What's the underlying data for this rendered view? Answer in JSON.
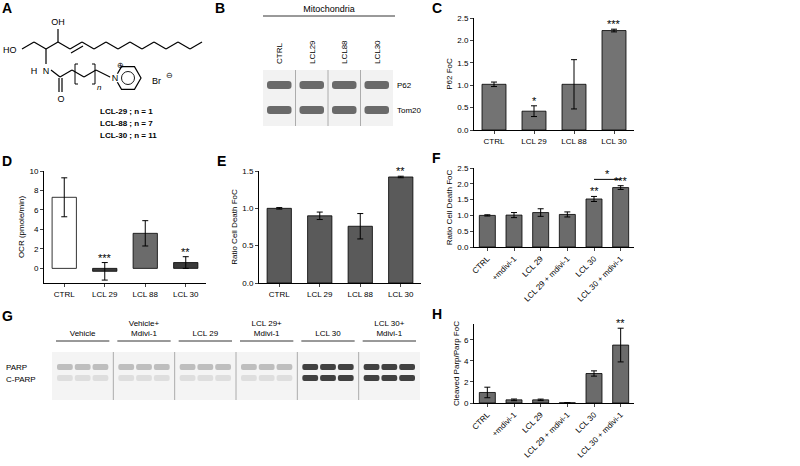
{
  "panels": {
    "A": {
      "label": "A",
      "structure": {
        "hydroxyl_1": "HO",
        "hydroxyl_2": "OH",
        "amide_h": "H",
        "amide_n": "N",
        "carbonyl_o": "O",
        "pyridinium_n": "N",
        "charge_plus": "⊕",
        "counterion": "Br",
        "charge_minus": "⊖",
        "repeat": "n"
      },
      "compounds": [
        "LCL-29 ; n = 1",
        "LCL-88 ; n = 7",
        "LCL-30 ; n = 11"
      ]
    },
    "B": {
      "label": "B",
      "title": "Mitochondria",
      "lanes": [
        "CTRL",
        "LCL29",
        "LCL88",
        "LCL30"
      ],
      "bands": [
        "P62",
        "Tom20"
      ]
    },
    "G": {
      "label": "G",
      "groups": [
        [
          "Vehicle"
        ],
        [
          "Vehicle+",
          "Mdivi-1"
        ],
        [
          "LCL 29"
        ],
        [
          "LCL 29+",
          "Mdivi-1"
        ],
        [
          "LCL 30"
        ],
        [
          "LCL 30+",
          "Mdivi-1"
        ]
      ],
      "bands": [
        "PARP",
        "C-PARP"
      ]
    }
  },
  "chart_data": [
    {
      "label": "C",
      "type": "bar",
      "y_label": "P62 FoC",
      "categories": [
        "CTRL",
        "LCL 29",
        "LCL 88",
        "LCL 30"
      ],
      "values": [
        1.02,
        0.42,
        1.02,
        2.22
      ],
      "errors": [
        0.05,
        0.12,
        0.55,
        0.03
      ],
      "color": "#737373",
      "ylim": [
        0,
        2.5
      ],
      "yticks": [
        {
          "value": 0,
          "label": "0.0"
        },
        0.5,
        {
          "value": 1,
          "label": "1.0"
        },
        1.5,
        {
          "value": 2,
          "label": "2.0"
        },
        2.5
      ],
      "annotations": [
        {
          "category": "LCL 29",
          "text": "*"
        },
        {
          "category": "LCL 30",
          "text": "***"
        }
      ]
    },
    {
      "label": "D",
      "type": "bar",
      "y_label": "OCR (pmole/min)",
      "categories": [
        "CTRL",
        "LCL 29",
        "LCL 88",
        "LCL 30"
      ],
      "values": [
        7.3,
        -0.3,
        3.6,
        0.6
      ],
      "errors": [
        2.0,
        0.9,
        1.3,
        0.6
      ],
      "colors": [
        "#ffffff",
        "#3a3a3a",
        "#6b6b6b",
        "#3a3a3a"
      ],
      "ylim": [
        -1.5,
        10
      ],
      "yticks": [
        0,
        2,
        4,
        6,
        8,
        10
      ],
      "annotations": [
        {
          "category": "LCL 29",
          "text": "***"
        },
        {
          "category": "LCL 30",
          "text": "**"
        }
      ]
    },
    {
      "label": "E",
      "type": "bar",
      "y_label": "Ratio Cell Death FoC",
      "categories": [
        "CTRL",
        "LCL 29",
        "LCL 88",
        "LCL 30"
      ],
      "values": [
        1.0,
        0.9,
        0.76,
        1.42
      ],
      "errors": [
        0.01,
        0.05,
        0.17,
        0.01
      ],
      "color": "#5a5a5a",
      "ylim": [
        0,
        1.5
      ],
      "yticks": [
        {
          "value": 0,
          "label": "0.0"
        },
        0.5,
        {
          "value": 1,
          "label": "1.0"
        },
        1.5
      ],
      "annotations": [
        {
          "category": "LCL 30",
          "text": "**"
        }
      ]
    },
    {
      "label": "F",
      "type": "bar",
      "y_label": "Ratio Cell Death FoC",
      "categories": [
        "CTRL",
        "+mdivi-1",
        "LCL 29",
        "LCL 29 + mdivi-1",
        "LCL 30",
        "LCL 30 + mdivi-1"
      ],
      "values": [
        1.0,
        1.01,
        1.09,
        1.03,
        1.52,
        1.88
      ],
      "errors": [
        0.02,
        0.08,
        0.12,
        0.08,
        0.08,
        0.06
      ],
      "color": "#6b6b6b",
      "ylim": [
        0,
        2.5
      ],
      "yticks": [
        {
          "value": 0,
          "label": "0.0"
        },
        0.5,
        {
          "value": 1,
          "label": "1.0"
        },
        1.5,
        {
          "value": 2,
          "label": "2.0"
        },
        2.5
      ],
      "annotations": [
        {
          "category": "LCL 30",
          "text": "**"
        },
        {
          "category": "LCL 30 + mdivi-1",
          "text": "***"
        },
        {
          "from": "LCL 30",
          "to": "LCL 30 + mdivi-1",
          "text": "*"
        }
      ]
    },
    {
      "label": "H",
      "type": "bar",
      "y_label": "Cleaved Parp/Parp FoC",
      "categories": [
        "CTRL",
        "+mdivi-1",
        "LCL 29",
        "LCL 29 + mdivi-1",
        "LCL 30",
        "LCL 30 + mdivi-1"
      ],
      "values": [
        1.0,
        0.3,
        0.3,
        0.02,
        2.8,
        5.5
      ],
      "errors": [
        0.5,
        0.08,
        0.07,
        0.02,
        0.25,
        1.6
      ],
      "color": "#6b6b6b",
      "ylim": [
        0,
        7.5
      ],
      "yticks": [
        0,
        2,
        4,
        6
      ],
      "annotations": [
        {
          "category": "LCL 30 + mdivi-1",
          "text": "**"
        }
      ]
    }
  ]
}
